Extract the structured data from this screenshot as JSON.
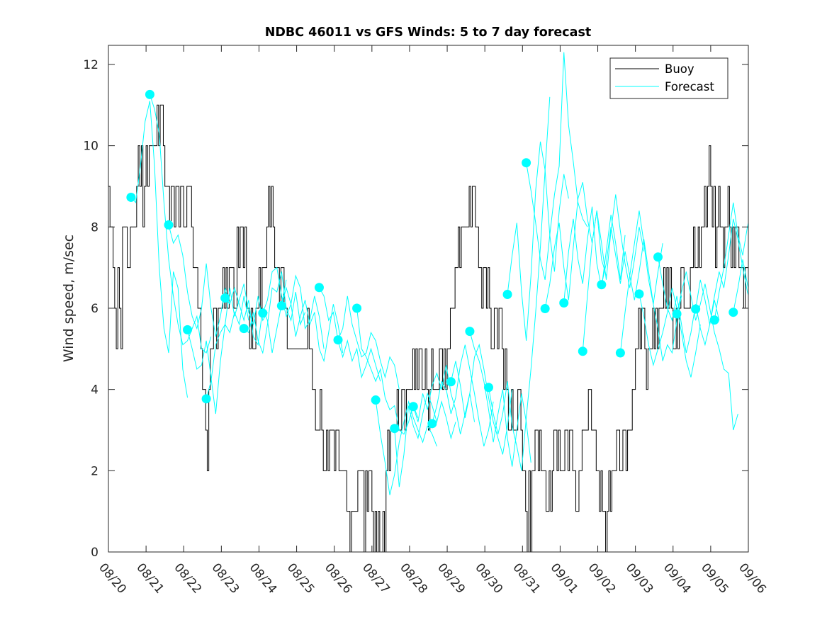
{
  "chart_data": {
    "type": "line",
    "title": "NDBC 46011 vs GFS Winds: 5 to 7 day forecast",
    "xlabel": "",
    "ylabel": "Wind speed, m/sec",
    "xlim_days": [
      0,
      17
    ],
    "ylim": [
      0,
      12.47
    ],
    "x_tick_labels": [
      "08/20",
      "08/21",
      "08/22",
      "08/23",
      "08/24",
      "08/25",
      "08/26",
      "08/27",
      "08/28",
      "08/29",
      "08/30",
      "08/31",
      "09/01",
      "09/02",
      "09/03",
      "09/04",
      "09/05",
      "09/06"
    ],
    "y_ticks": [
      0,
      2,
      4,
      6,
      8,
      10,
      12
    ],
    "x_units": "days since 08/20 00:00",
    "grid": false,
    "legend": {
      "position": "top-right",
      "entries": [
        {
          "label": "Buoy",
          "color": "#000000"
        },
        {
          "label": "Forecast",
          "color": "#00ffff"
        }
      ]
    },
    "colors": {
      "buoy": "#000000",
      "forecast": "#00ffff"
    },
    "series": [
      {
        "name": "Buoy",
        "kind": "step",
        "sample_interval_hours": 1,
        "start_day": 0,
        "values_by_day": [
          [
            9,
            8,
            8,
            7,
            6,
            5,
            7,
            6,
            5,
            8,
            8,
            8,
            7,
            7,
            8,
            8,
            8,
            8,
            9,
            10,
            9,
            10,
            8,
            9
          ],
          [
            10,
            9,
            10,
            10,
            10,
            10,
            10,
            11,
            10,
            11,
            11,
            10,
            9,
            9,
            9,
            8,
            9,
            9,
            8,
            9,
            9,
            8,
            9,
            9
          ],
          [
            8,
            8,
            9,
            9,
            9,
            8,
            7,
            7,
            7,
            6,
            6,
            5,
            4,
            4,
            3,
            2,
            4,
            5,
            5,
            6,
            6,
            5,
            6,
            6
          ],
          [
            6,
            7,
            6,
            7,
            6,
            7,
            7,
            7,
            6,
            6,
            8,
            7,
            8,
            8,
            7,
            8,
            6,
            6,
            5,
            6,
            5,
            5,
            6,
            6
          ],
          [
            7,
            6,
            7,
            7,
            7,
            8,
            9,
            8,
            9,
            8,
            7,
            7,
            7,
            6,
            7,
            7,
            6,
            6,
            5,
            5,
            5,
            5,
            5,
            5
          ],
          [
            5,
            5,
            5,
            5,
            5,
            5,
            5,
            6,
            5,
            5,
            4,
            4,
            3,
            3,
            3,
            4,
            3,
            2,
            2,
            3,
            2,
            3,
            3,
            3
          ],
          [
            2,
            3,
            3,
            2,
            2,
            2,
            2,
            2,
            1,
            1,
            0,
            1,
            1,
            1,
            1,
            2,
            2,
            2,
            2,
            0,
            2,
            1,
            2,
            2
          ],
          [
            1,
            0,
            1,
            0,
            1,
            0,
            0,
            1,
            0,
            2,
            3,
            2,
            3,
            3,
            3,
            3,
            4,
            3,
            3,
            4,
            4,
            3,
            4,
            4
          ],
          [
            4,
            4,
            5,
            4,
            5,
            4,
            5,
            5,
            4,
            4,
            5,
            4,
            3,
            4,
            5,
            4,
            4,
            4,
            4,
            5,
            5,
            4,
            5,
            4
          ],
          [
            5,
            5,
            6,
            6,
            6,
            7,
            7,
            8,
            7,
            8,
            8,
            8,
            8,
            8,
            9,
            8,
            9,
            9,
            8,
            8,
            7,
            7,
            6,
            7
          ],
          [
            7,
            6,
            7,
            6,
            5,
            5,
            6,
            6,
            5,
            6,
            6,
            5,
            4,
            5,
            4,
            3,
            3,
            4,
            3,
            3,
            3,
            4,
            4,
            3
          ],
          [
            2,
            2,
            1,
            0,
            2,
            0,
            2,
            2,
            3,
            3,
            2,
            3,
            2,
            2,
            2,
            1,
            1,
            2,
            1,
            2,
            3,
            3,
            2,
            3
          ],
          [
            2,
            2,
            2,
            3,
            3,
            2,
            3,
            3,
            2,
            2,
            1,
            1,
            2,
            2,
            3,
            3,
            3,
            3,
            4,
            4,
            3,
            3,
            3,
            2
          ],
          [
            2,
            1,
            2,
            1,
            1,
            0,
            1,
            2,
            1,
            2,
            2,
            2,
            3,
            3,
            2,
            2,
            3,
            3,
            2,
            3,
            3,
            3,
            4,
            4
          ],
          [
            5,
            5,
            6,
            5,
            6,
            6,
            5,
            4,
            5,
            5,
            5,
            6,
            5,
            6,
            5,
            6,
            6,
            6,
            7,
            6,
            7,
            6,
            7,
            6
          ],
          [
            5,
            5,
            6,
            5,
            6,
            7,
            7,
            6,
            6,
            6,
            6,
            7,
            7,
            8,
            7,
            7,
            8,
            7,
            8,
            8,
            9,
            8,
            9,
            10
          ],
          [
            9,
            8,
            9,
            7,
            8,
            9,
            8,
            8,
            7,
            8,
            8,
            9,
            8,
            7,
            8,
            7,
            8,
            8,
            7,
            7,
            7,
            6,
            7,
            7
          ]
        ]
      },
      {
        "name": "Forecast",
        "kind": "segments",
        "sample_interval_hours": 3,
        "marker": "filled-circle-at-segment-start",
        "segments": [
          {
            "start_day": 0.6,
            "values": [
              8.73,
              8.6,
              9.5,
              10.6,
              11.1,
              9.5,
              7.0,
              5.5,
              4.9,
              6.9,
              6.5,
              4.5,
              3.8
            ]
          },
          {
            "start_day": 1.1,
            "values": [
              11.26,
              10.9,
              10.3,
              8.6,
              7.2,
              6.3,
              5.6,
              5.1,
              5.2,
              5.5,
              5.8,
              5.0,
              4.9,
              5.3
            ]
          },
          {
            "start_day": 1.6,
            "values": [
              8.05,
              7.6,
              7.8,
              7.3,
              6.4,
              5.8,
              5.5,
              6.0,
              7.1,
              6.0,
              5.3,
              5.8,
              6.5,
              6.1
            ]
          },
          {
            "start_day": 2.1,
            "values": [
              5.47,
              5.0,
              4.5,
              4.6,
              5.2,
              4.3,
              3.4,
              4.7,
              5.6,
              5.4,
              5.9,
              5.6,
              6.3,
              5.7
            ]
          },
          {
            "start_day": 2.6,
            "values": [
              3.77,
              4.2,
              5.1,
              5.4,
              5.6,
              6.5,
              5.8,
              6.2,
              6.6,
              5.9,
              5.6,
              6.3,
              5.7,
              5.9
            ]
          },
          {
            "start_day": 3.1,
            "values": [
              6.25,
              6.1,
              6.5,
              6.1,
              5.7,
              6.2,
              5.3,
              5.1,
              6.0,
              5.7,
              4.9,
              5.5,
              6.1,
              6.7
            ]
          },
          {
            "start_day": 3.6,
            "values": [
              5.5,
              5.4,
              5.9,
              5.2,
              4.9,
              5.6,
              6.5,
              6.4,
              6.9,
              6.0,
              5.7,
              6.4,
              5.6,
              5.9
            ]
          },
          {
            "start_day": 4.1,
            "values": [
              5.88,
              6.2,
              6.9,
              7.0,
              6.3,
              5.8,
              6.1,
              6.8,
              6.5,
              5.5,
              5.7,
              6.3,
              5.8,
              5.0
            ]
          },
          {
            "start_day": 4.6,
            "values": [
              6.06,
              6.5,
              6.1,
              5.3,
              5.8,
              6.2,
              5.6,
              5.9,
              5.0,
              4.7,
              5.4,
              6.1,
              5.6,
              4.9
            ]
          },
          {
            "start_day": 5.6,
            "values": [
              6.51,
              6.3,
              5.7,
              5.9,
              5.2,
              4.8,
              5.2,
              4.7,
              5.0,
              4.3,
              4.6,
              5.0,
              4.6,
              4.2
            ]
          },
          {
            "start_day": 6.1,
            "values": [
              5.22,
              5.5,
              6.3,
              5.6,
              5.2,
              4.8,
              4.9,
              5.4,
              5.2,
              4.7,
              4.3,
              4.8,
              4.6,
              4.0
            ]
          },
          {
            "start_day": 6.6,
            "values": [
              6.0,
              5.0,
              4.8,
              4.5,
              4.2,
              4.5,
              3.8,
              3.5,
              3.6,
              3.0,
              2.9,
              3.2,
              3.6,
              3.3
            ]
          },
          {
            "start_day": 7.1,
            "values": [
              3.74,
              2.9,
              2.2,
              1.4,
              1.9,
              2.7,
              3.2,
              3.7,
              3.3,
              3.0,
              2.7,
              3.1,
              2.9,
              2.6
            ]
          },
          {
            "start_day": 7.6,
            "values": [
              3.04,
              1.6,
              2.4,
              3.6,
              3.1,
              2.8,
              3.4,
              3.9,
              3.6,
              3.2,
              3.7,
              3.3,
              2.8,
              3.2
            ]
          },
          {
            "start_day": 8.1,
            "values": [
              3.58,
              3.2,
              3.9,
              3.5,
              4.1,
              4.4,
              4.0,
              4.6,
              3.9,
              3.5,
              2.9,
              3.4,
              3.9,
              3.2
            ]
          },
          {
            "start_day": 8.6,
            "values": [
              3.16,
              3.6,
              4.2,
              4.0,
              3.4,
              3.8,
              4.6,
              5.1,
              4.5,
              3.9,
              3.2,
              2.6,
              3.0,
              3.7
            ]
          },
          {
            "start_day": 9.1,
            "values": [
              4.19,
              4.7,
              4.1,
              3.3,
              3.9,
              4.8,
              5.1,
              4.5,
              3.8,
              3.2,
              2.8,
              2.4,
              3.1,
              4.0
            ]
          },
          {
            "start_day": 9.6,
            "values": [
              5.43,
              5.0,
              4.7,
              4.2,
              3.5,
              2.7,
              3.4,
              4.0,
              2.8,
              2.1,
              3.0,
              3.9,
              3.2,
              2.2
            ]
          },
          {
            "start_day": 10.1,
            "values": [
              4.05,
              3.4,
              2.9,
              3.4,
              4.2,
              3.1,
              2.6,
              2.0,
              3.3,
              4.5,
              5.9,
              7.5,
              9.4,
              11.2
            ]
          },
          {
            "start_day": 10.6,
            "values": [
              6.34,
              7.3,
              8.1,
              6.4,
              5.2,
              6.8,
              8.9,
              10.1,
              9.4,
              7.8,
              6.9,
              8.4,
              9.3,
              8.7
            ]
          },
          {
            "start_day": 11.1,
            "values": [
              9.58,
              8.9,
              8.1,
              7.2,
              6.7,
              7.8,
              8.8,
              9.5,
              12.3,
              10.5,
              9.6,
              8.6,
              8.2,
              8.0
            ]
          },
          {
            "start_day": 11.6,
            "values": [
              5.99,
              6.6,
              7.5,
              8.1,
              7.0,
              6.2,
              7.5,
              8.7,
              9.1,
              8.2,
              7.6,
              8.4,
              7.2,
              6.8
            ]
          },
          {
            "start_day": 12.1,
            "values": [
              6.13,
              7.4,
              8.2,
              7.2,
              6.6,
              7.7,
              8.5,
              7.1,
              6.5,
              7.4,
              8.3,
              7.6,
              6.7,
              7.8
            ]
          },
          {
            "start_day": 12.6,
            "values": [
              4.94,
              6.3,
              7.6,
              8.4,
              7.6,
              6.7,
              7.9,
              8.8,
              7.9,
              7.1,
              6.5,
              7.2,
              8.0,
              7.4
            ]
          },
          {
            "start_day": 13.1,
            "values": [
              6.58,
              7.1,
              8.0,
              7.3,
              6.6,
              7.4,
              6.8,
              6.2,
              6.9,
              7.7,
              6.9,
              6.1,
              6.9,
              7.6
            ]
          },
          {
            "start_day": 13.6,
            "values": [
              4.9,
              5.9,
              6.8,
              7.6,
              8.4,
              7.6,
              6.7,
              6.1,
              5.5,
              4.7,
              5.1,
              4.9,
              5.7,
              6.3
            ]
          },
          {
            "start_day": 14.1,
            "values": [
              6.35,
              5.8,
              5.1,
              4.6,
              5.0,
              5.4,
              5.9,
              6.5,
              6.0,
              5.4,
              4.7,
              4.3,
              4.9,
              5.6
            ]
          },
          {
            "start_day": 14.6,
            "values": [
              7.26,
              6.6,
              6.0,
              5.7,
              6.3,
              5.6,
              4.9,
              5.4,
              6.1,
              5.5,
              5.1,
              5.6,
              6.2,
              5.7
            ]
          },
          {
            "start_day": 15.1,
            "values": [
              5.86,
              6.4,
              6.9,
              6.3,
              5.7,
              6.1,
              6.6,
              6.0,
              5.4,
              5.0,
              4.5,
              4.4,
              3.0,
              3.4
            ]
          },
          {
            "start_day": 15.6,
            "values": [
              5.98,
              6.7,
              6.2,
              5.6,
              6.3,
              6.9,
              6.5,
              7.3,
              8.2,
              7.7,
              7.0,
              6.4,
              6.0,
              5.2
            ]
          },
          {
            "start_day": 16.1,
            "values": [
              5.71,
              6.4,
              7.0,
              7.8,
              8.6,
              7.8,
              7.3,
              8.0,
              8.5,
              7.7,
              7.1
            ]
          },
          {
            "start_day": 16.6,
            "values": [
              5.9,
              6.5,
              7.2,
              6.6,
              6.1,
              6.6
            ]
          }
        ]
      }
    ]
  }
}
